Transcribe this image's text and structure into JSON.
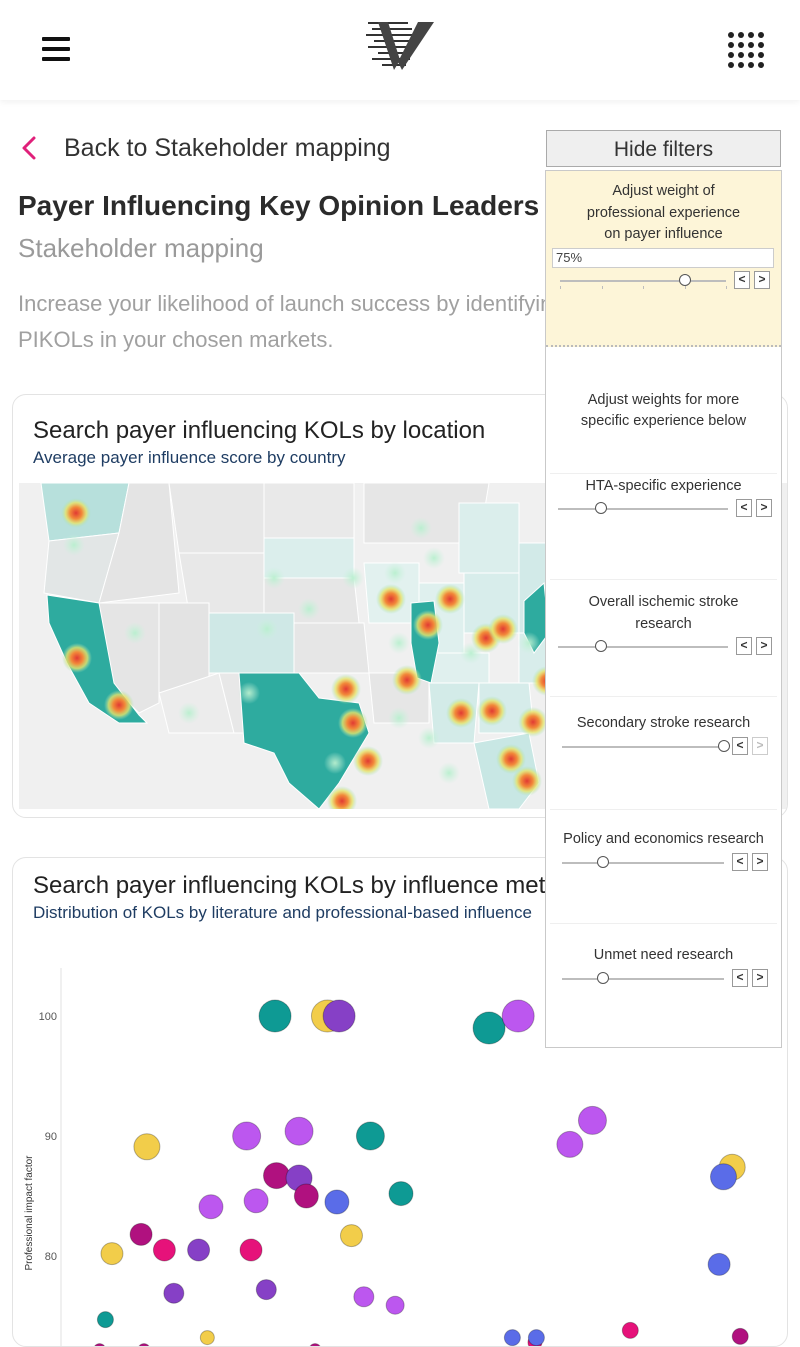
{
  "header": {
    "menu_icon": "hamburger-icon",
    "logo_icon": "brand-logo",
    "apps_icon": "apps-grid-icon"
  },
  "back_link": {
    "label": "Back to Stakeholder mapping",
    "icon": "chevron-left-icon",
    "color": "#e0207a"
  },
  "page": {
    "title": "Payer Influencing Key Opinion Leaders",
    "subtitle": "Stakeholder mapping",
    "intro": "Increase your likelihood of launch success by identifying and leveraging PIKOLs in your chosen markets."
  },
  "map_card": {
    "title": "Search payer influencing KOLs by location",
    "subtitle": "Average payer influence score by country"
  },
  "scatter_card": {
    "title": "Search payer influencing KOLs by influence metrics",
    "subtitle": "Distribution of KOLs by literature and professional-based influence",
    "chart_data": {
      "type": "scatter",
      "ylabel": "Professional impact factor",
      "yticks": [
        100,
        90,
        80
      ],
      "ylim": [
        71.5,
        104
      ],
      "xlim": [
        0,
        100
      ],
      "colors": {
        "teal": "#0e9a94",
        "gold": "#f2cd4a",
        "purple": "#8640c6",
        "violet": "#bc57ef",
        "magenta": "#b0117f",
        "pink": "#e6127a",
        "blue": "#5a6ce8"
      },
      "points": [
        {
          "x": 29.4,
          "y": 100,
          "r": 16,
          "c": "teal"
        },
        {
          "x": 36.6,
          "y": 100,
          "r": 16,
          "c": "gold"
        },
        {
          "x": 38.2,
          "y": 100,
          "r": 16,
          "c": "purple"
        },
        {
          "x": 58.8,
          "y": 99.0,
          "r": 16,
          "c": "teal"
        },
        {
          "x": 62.8,
          "y": 100,
          "r": 16,
          "c": "violet"
        },
        {
          "x": 11.8,
          "y": 89.1,
          "r": 13,
          "c": "gold"
        },
        {
          "x": 25.5,
          "y": 90.0,
          "r": 14,
          "c": "violet"
        },
        {
          "x": 32.7,
          "y": 90.4,
          "r": 14,
          "c": "violet"
        },
        {
          "x": 42.5,
          "y": 90.0,
          "r": 14,
          "c": "teal"
        },
        {
          "x": 73.0,
          "y": 91.3,
          "r": 14,
          "c": "violet"
        },
        {
          "x": 69.9,
          "y": 89.3,
          "r": 13,
          "c": "violet"
        },
        {
          "x": 92.2,
          "y": 87.4,
          "r": 13,
          "c": "gold"
        },
        {
          "x": 91.0,
          "y": 86.6,
          "r": 13,
          "c": "blue"
        },
        {
          "x": 29.6,
          "y": 86.7,
          "r": 13,
          "c": "magenta"
        },
        {
          "x": 32.7,
          "y": 86.5,
          "r": 13,
          "c": "purple"
        },
        {
          "x": 33.7,
          "y": 85.0,
          "r": 12,
          "c": "magenta"
        },
        {
          "x": 26.8,
          "y": 84.6,
          "r": 12,
          "c": "violet"
        },
        {
          "x": 37.9,
          "y": 84.5,
          "r": 12,
          "c": "blue"
        },
        {
          "x": 46.7,
          "y": 85.2,
          "r": 12,
          "c": "teal"
        },
        {
          "x": 20.6,
          "y": 84.1,
          "r": 12,
          "c": "violet"
        },
        {
          "x": 39.9,
          "y": 81.7,
          "r": 11,
          "c": "gold"
        },
        {
          "x": 11.0,
          "y": 81.8,
          "r": 11,
          "c": "magenta"
        },
        {
          "x": 14.2,
          "y": 80.5,
          "r": 11,
          "c": "pink"
        },
        {
          "x": 7.0,
          "y": 80.2,
          "r": 11,
          "c": "gold"
        },
        {
          "x": 18.9,
          "y": 80.5,
          "r": 11,
          "c": "purple"
        },
        {
          "x": 26.1,
          "y": 80.5,
          "r": 11,
          "c": "pink"
        },
        {
          "x": 90.4,
          "y": 79.3,
          "r": 11,
          "c": "blue"
        },
        {
          "x": 15.5,
          "y": 76.9,
          "r": 10,
          "c": "purple"
        },
        {
          "x": 28.2,
          "y": 77.2,
          "r": 10,
          "c": "purple"
        },
        {
          "x": 41.6,
          "y": 76.6,
          "r": 10,
          "c": "violet"
        },
        {
          "x": 45.9,
          "y": 75.9,
          "r": 9,
          "c": "violet"
        },
        {
          "x": 6.1,
          "y": 74.7,
          "r": 8,
          "c": "teal"
        },
        {
          "x": 20.1,
          "y": 73.2,
          "r": 7,
          "c": "gold"
        },
        {
          "x": 5.3,
          "y": 72.2,
          "r": 6,
          "c": "magenta"
        },
        {
          "x": 11.4,
          "y": 72.2,
          "r": 6,
          "c": "magenta"
        },
        {
          "x": 34.9,
          "y": 72.2,
          "r": 6,
          "c": "magenta"
        },
        {
          "x": 62.0,
          "y": 73.2,
          "r": 8,
          "c": "blue"
        },
        {
          "x": 65.1,
          "y": 72.8,
          "r": 7,
          "c": "pink"
        },
        {
          "x": 65.3,
          "y": 73.2,
          "r": 8,
          "c": "blue"
        },
        {
          "x": 78.2,
          "y": 73.8,
          "r": 8,
          "c": "pink"
        },
        {
          "x": 93.3,
          "y": 73.3,
          "r": 8,
          "c": "magenta"
        }
      ]
    }
  },
  "filters": {
    "toggle_label": "Hide filters",
    "main": {
      "label_lines": [
        "Adjust weight of",
        "professional experience",
        "on payer influence"
      ],
      "value": "75%",
      "fraction": 0.75,
      "highlight_color": "#fdf5d8"
    },
    "section_label_lines": [
      "Adjust weights for more",
      "specific experience below"
    ],
    "sub_filters": [
      {
        "label_lines": [
          "HTA-specific experience"
        ],
        "fraction": 0.25
      },
      {
        "label_lines": [
          "Overall ischemic stroke",
          "research"
        ],
        "fraction": 0.25
      },
      {
        "label_lines": [
          "Secondary stroke research"
        ],
        "fraction": 1.0
      },
      {
        "label_lines": [
          "Policy and economics research"
        ],
        "fraction": 0.25
      },
      {
        "label_lines": [
          "Unmet need research"
        ],
        "fraction": 0.25
      }
    ],
    "prev_icon": "chevron-left-icon",
    "next_icon": "chevron-right-icon"
  }
}
